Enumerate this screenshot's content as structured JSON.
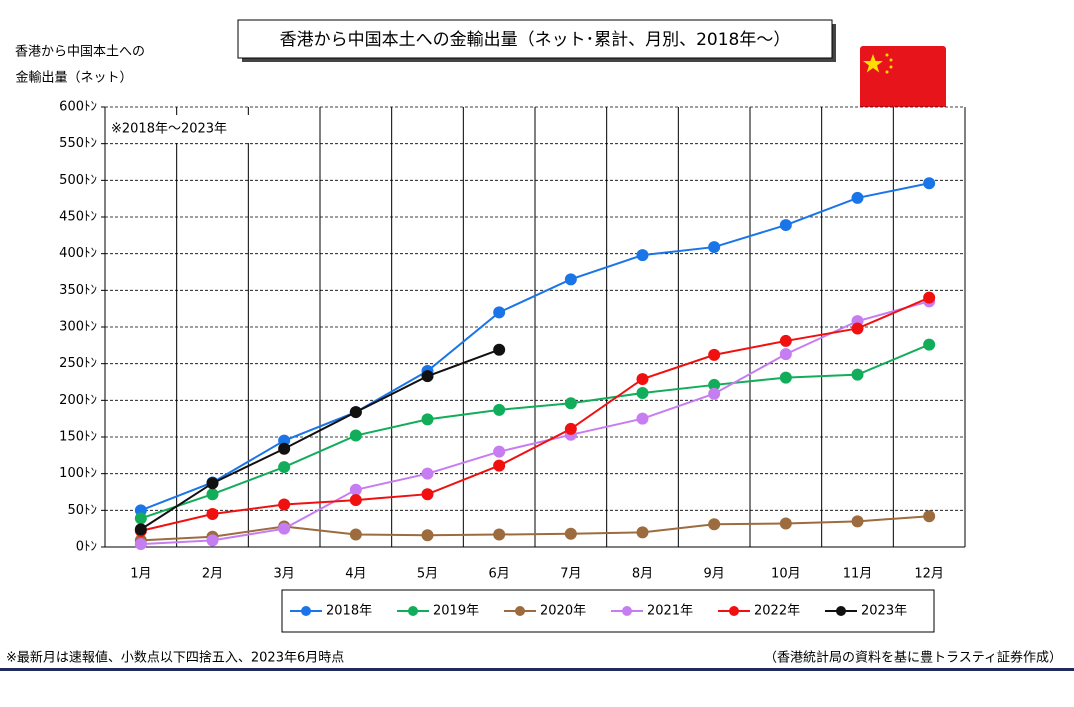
{
  "chart_data": {
    "type": "line",
    "title": "香港から中国本土への金輸出量（ネット･累計、月別、2018年～）",
    "y_label": [
      "香港から中国本土への",
      "金輸出量（ネット）"
    ],
    "annotation": "※2018年～2023年",
    "footnote_left": "※最新月は速報値、小数点以下四捨五入、2023年6月時点",
    "footnote_right": "（香港統計局の資料を基に豊トラスティ証券作成）",
    "categories": [
      "1月",
      "2月",
      "3月",
      "4月",
      "5月",
      "6月",
      "7月",
      "8月",
      "9月",
      "10月",
      "11月",
      "12月"
    ],
    "ylim": [
      0,
      600
    ],
    "yticks": [
      {
        "value": 0,
        "label": "0ﾄﾝ"
      },
      {
        "value": 50,
        "label": "50ﾄﾝ"
      },
      {
        "value": 100,
        "label": "100ﾄﾝ"
      },
      {
        "value": 150,
        "label": "150ﾄﾝ"
      },
      {
        "value": 200,
        "label": "200ﾄﾝ"
      },
      {
        "value": 250,
        "label": "250ﾄﾝ"
      },
      {
        "value": 300,
        "label": "300ﾄﾝ"
      },
      {
        "value": 350,
        "label": "350ﾄﾝ"
      },
      {
        "value": 400,
        "label": "400ﾄﾝ"
      },
      {
        "value": 450,
        "label": "450ﾄﾝ"
      },
      {
        "value": 500,
        "label": "500ﾄﾝ"
      },
      {
        "value": 550,
        "label": "550ﾄﾝ"
      },
      {
        "value": 600,
        "label": "600ﾄﾝ"
      }
    ],
    "grid": true,
    "series": [
      {
        "name": "2018年",
        "color": "#1a75e8",
        "values": [
          50,
          88,
          145,
          184,
          240,
          320,
          365,
          398,
          409,
          439,
          476,
          496
        ]
      },
      {
        "name": "2019年",
        "color": "#12ad5a",
        "values": [
          39,
          72,
          109,
          152,
          174,
          187,
          196,
          210,
          221,
          231,
          235,
          276
        ]
      },
      {
        "name": "2020年",
        "color": "#9c6b3e",
        "values": [
          9,
          14,
          28,
          17,
          16,
          17,
          18,
          20,
          31,
          32,
          35,
          42
        ]
      },
      {
        "name": "2021年",
        "color": "#c77df2",
        "values": [
          4,
          9,
          25,
          78,
          100,
          130,
          153,
          175,
          209,
          263,
          308,
          335
        ]
      },
      {
        "name": "2022年",
        "color": "#f01010",
        "values": [
          22,
          45,
          58,
          64,
          72,
          111,
          161,
          229,
          262,
          281,
          298,
          340
        ]
      },
      {
        "name": "2023年",
        "color": "#111111",
        "values": [
          24,
          87,
          134,
          184,
          233,
          269,
          null,
          null,
          null,
          null,
          null,
          null
        ]
      }
    ]
  }
}
